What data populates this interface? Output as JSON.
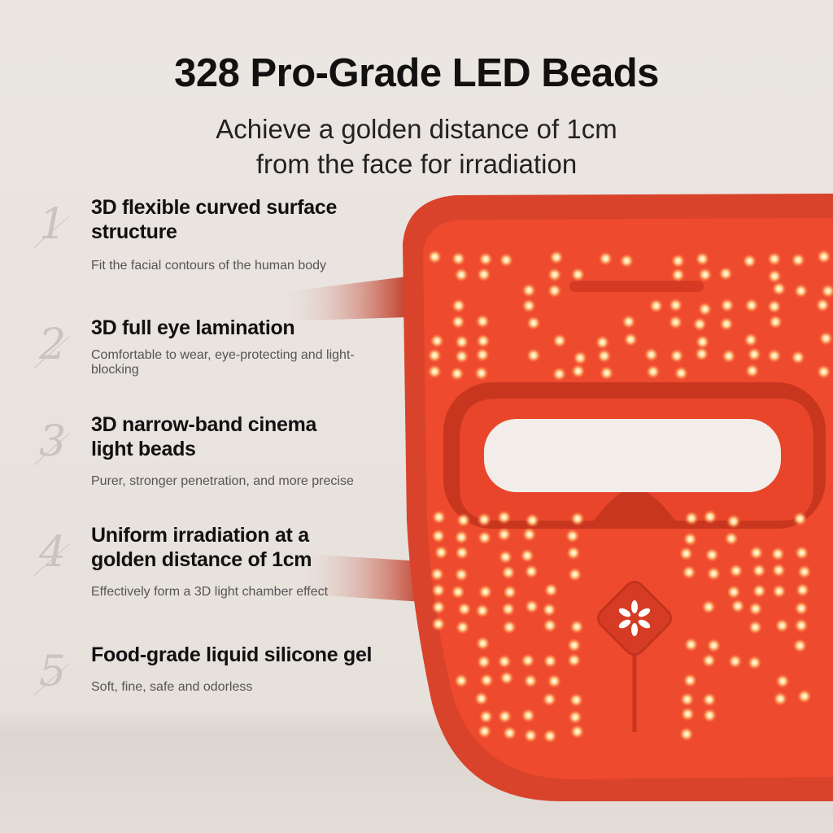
{
  "header": {
    "title": "328 Pro-Grade LED Beads",
    "subtitle": "Achieve a golden distance of 1cm from the face for irradiation"
  },
  "features": [
    {
      "number": "1",
      "title": "3D flexible curved surface structure",
      "description": "Fit the facial contours of the human body"
    },
    {
      "number": "2",
      "title": "3D full eye lamination",
      "description": "Comfortable to wear, eye-protecting and light-blocking"
    },
    {
      "number": "3",
      "title": "3D narrow-band cinema light beads",
      "description": "Purer, stronger penetration, and more precise"
    },
    {
      "number": "4",
      "title": "Uniform irradiation at a golden distance of 1cm",
      "description": "Effectively form a 3D light chamber effect"
    },
    {
      "number": "5",
      "title": "Food-grade liquid silicone gel",
      "description": "Soft, fine, safe and odorless"
    }
  ],
  "colors": {
    "mask": "#e2452c",
    "led": "#fff2c8",
    "background": "#e9e4df"
  }
}
